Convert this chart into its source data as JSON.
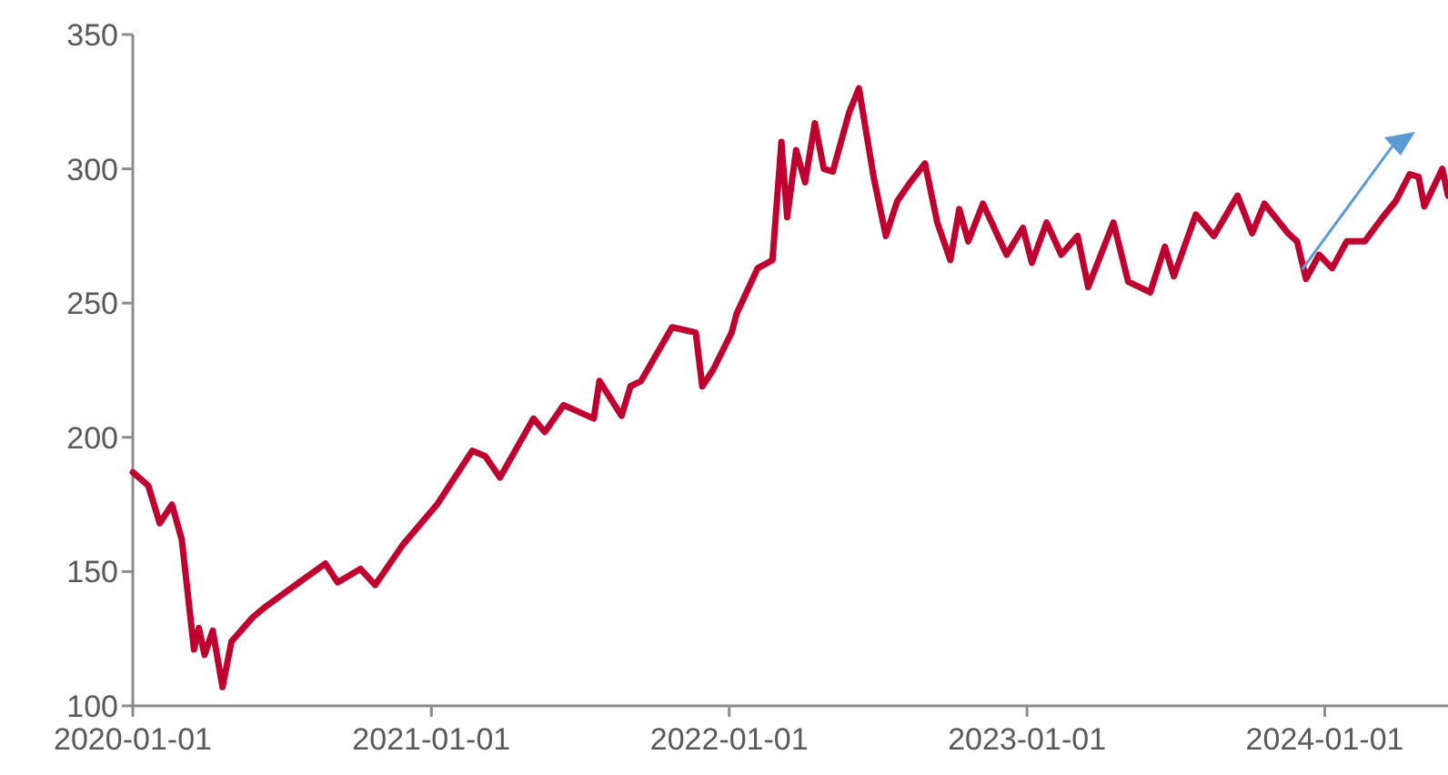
{
  "chart_data": {
    "type": "line",
    "x": [
      "2020-01-01",
      "2020-01-20",
      "2020-02-03",
      "2020-02-18",
      "2020-03-01",
      "2020-03-16",
      "2020-03-22",
      "2020-03-29",
      "2020-04-08",
      "2020-04-20",
      "2020-05-01",
      "2020-05-27",
      "2020-06-12",
      "2020-08-01",
      "2020-08-24",
      "2020-09-08",
      "2020-10-06",
      "2020-10-24",
      "2020-11-27",
      "2021-01-08",
      "2021-02-20",
      "2021-03-08",
      "2021-03-26",
      "2021-05-06",
      "2021-05-20",
      "2021-06-12",
      "2021-07-19",
      "2021-07-26",
      "2021-08-22",
      "2021-09-02",
      "2021-09-15",
      "2021-10-23",
      "2021-11-21",
      "2021-11-29",
      "2021-12-12",
      "2022-01-04",
      "2022-01-10",
      "2022-02-05",
      "2022-02-23",
      "2022-03-06",
      "2022-03-13",
      "2022-03-24",
      "2022-04-04",
      "2022-04-16",
      "2022-04-27",
      "2022-05-08",
      "2022-05-28",
      "2022-06-09",
      "2022-06-27",
      "2022-07-12",
      "2022-07-26",
      "2022-08-11",
      "2022-08-29",
      "2022-09-13",
      "2022-09-29",
      "2022-10-10",
      "2022-10-21",
      "2022-11-08",
      "2022-12-07",
      "2022-12-27",
      "2023-01-07",
      "2023-01-25",
      "2023-02-12",
      "2023-03-04",
      "2023-03-17",
      "2023-04-17",
      "2023-05-05",
      "2023-06-01",
      "2023-06-19",
      "2023-06-30",
      "2023-07-27",
      "2023-08-18",
      "2023-09-16",
      "2023-10-04",
      "2023-10-19",
      "2023-11-17",
      "2023-11-28",
      "2023-12-09",
      "2023-12-25",
      "2024-01-10",
      "2024-01-28",
      "2024-02-19",
      "2024-03-12",
      "2024-03-28",
      "2024-04-14",
      "2024-04-25",
      "2024-05-02",
      "2024-05-24",
      "2024-05-31"
    ],
    "series": [
      {
        "color": "#c0002f",
        "values": [
          187,
          182,
          168,
          175,
          162,
          121,
          129,
          119,
          128,
          107,
          124,
          133,
          137,
          148,
          153,
          146,
          151,
          145,
          160,
          175,
          195,
          193,
          185,
          207,
          202,
          212,
          207,
          221,
          208,
          219,
          221,
          241,
          239,
          219,
          225,
          239,
          246,
          263,
          266,
          310,
          282,
          307,
          295,
          317,
          300,
          299,
          321,
          330,
          297,
          275,
          288,
          295,
          302,
          280,
          266,
          285,
          273,
          287,
          268,
          278,
          265,
          280,
          268,
          275,
          256,
          280,
          258,
          254,
          271,
          260,
          283,
          275,
          290,
          276,
          287,
          276,
          273,
          259,
          268,
          263,
          273,
          273,
          282,
          288,
          298,
          297,
          286,
          300,
          290
        ]
      }
    ],
    "xlim": [
      "2020-01-01",
      "2024-05-31"
    ],
    "xticks": [
      "2020-01-01",
      "2021-01-01",
      "2022-01-01",
      "2023-01-01",
      "2024-01-01"
    ],
    "ylim": [
      100,
      350
    ],
    "yticks": [
      100,
      150,
      200,
      250,
      300,
      350
    ],
    "grid": false,
    "marker": "none",
    "line_style": "solid"
  }
}
